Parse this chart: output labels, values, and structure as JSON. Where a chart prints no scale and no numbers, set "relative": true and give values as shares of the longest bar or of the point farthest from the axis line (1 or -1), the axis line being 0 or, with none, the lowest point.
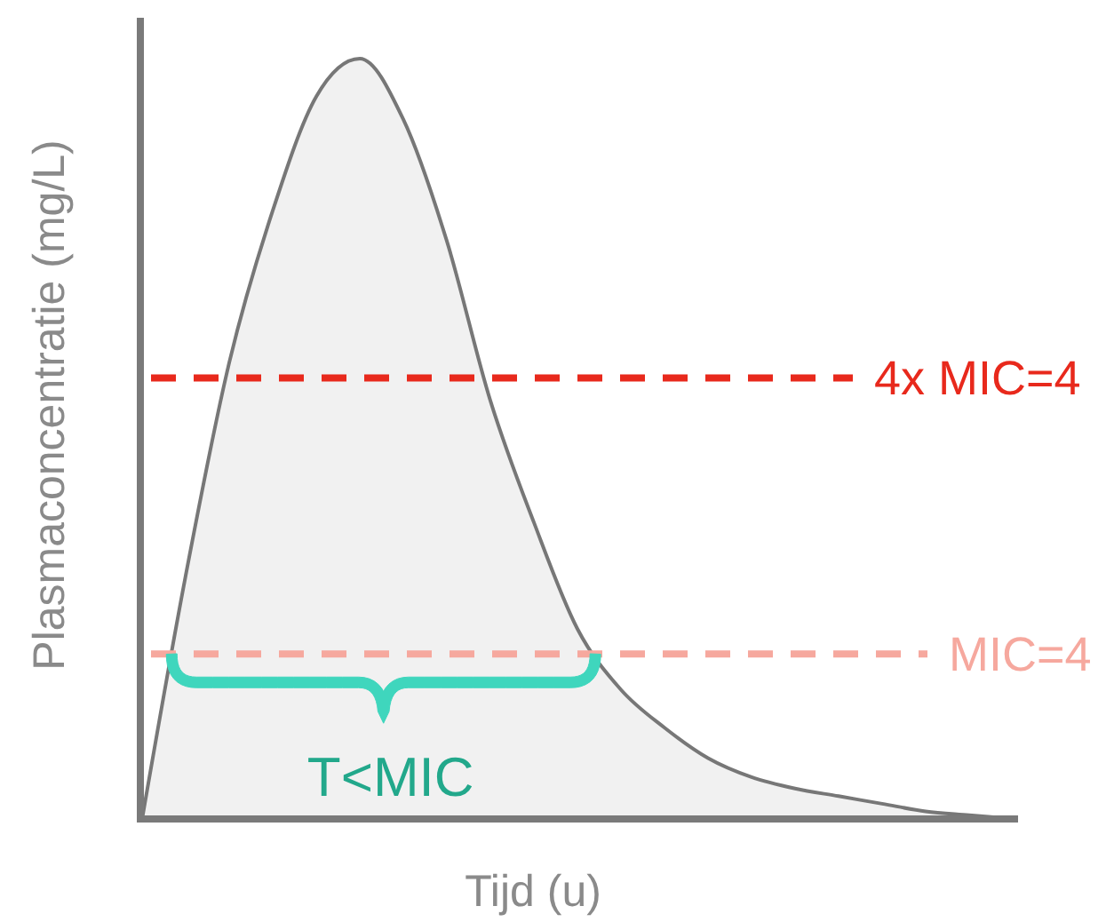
{
  "chart_data": {
    "type": "area",
    "relative": true,
    "xlabel": "Tijd (u)",
    "ylabel": "Plasmaconcentratie (mg/L)",
    "categories": [
      null,
      null,
      null,
      null,
      null,
      null,
      null,
      null,
      null,
      null,
      null,
      null,
      null,
      null,
      null,
      null,
      null,
      null,
      null,
      null,
      null
    ],
    "series": [
      {
        "color": "#777777",
        "values": [
          0,
          0.32,
          0.6,
          0.8,
          0.95,
          1,
          0.92,
          0.76,
          0.55,
          0.39,
          0.25,
          0.17,
          0.12,
          0.08,
          0.055,
          0.04,
          0.03,
          0.02,
          0.01,
          0.005,
          0
        ]
      }
    ],
    "ref_lines": [
      {
        "axis": "y",
        "value": 0.58,
        "color": "#e8291c",
        "line_style": "dashed"
      },
      {
        "axis": "y",
        "value": 0.217,
        "color": "#f6a89e",
        "line_style": "dashed"
      }
    ],
    "annotations": [
      "4x MIC=4",
      "MIC=4",
      "T<MIC"
    ]
  }
}
